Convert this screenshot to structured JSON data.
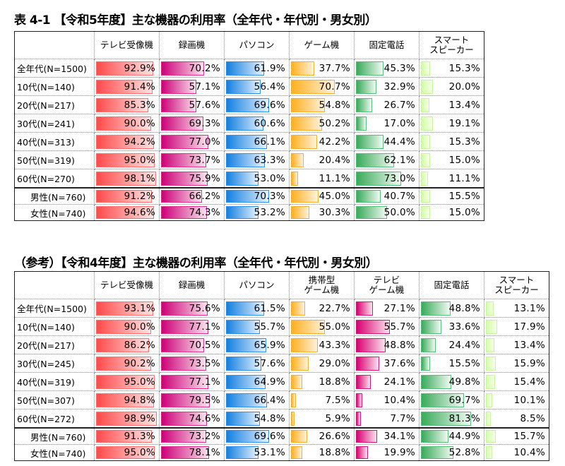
{
  "table1": {
    "title": "表 4-1 【令和5年度】主な機器の利用率（全年代・年代別・男女別）",
    "columns": [
      {
        "key": "tv",
        "label": "テレビ受像機",
        "color": "#ff4a4a"
      },
      {
        "key": "rec",
        "label": "録画機",
        "color": "#cc0077"
      },
      {
        "key": "pc",
        "label": "パソコン",
        "color": "#1480e0"
      },
      {
        "key": "game",
        "label": "ゲーム機",
        "color": "#ffb020"
      },
      {
        "key": "fix",
        "label": "固定電話",
        "color": "#3aaa5a"
      },
      {
        "key": "sp",
        "label": "スマート\nスピーカー",
        "color": "#d4ffa8"
      }
    ],
    "rows": [
      {
        "label": "全年代(N=1500)",
        "values": [
          "92.9%",
          "70.2%",
          "61.9%",
          "37.7%",
          "45.3%",
          "15.3%"
        ]
      },
      {
        "label": "10代(N=140)",
        "values": [
          "91.4%",
          "57.1%",
          "56.4%",
          "70.7%",
          "32.9%",
          "20.0%"
        ]
      },
      {
        "label": "20代(N=217)",
        "values": [
          "85.3%",
          "57.6%",
          "69.6%",
          "54.8%",
          "26.7%",
          "13.4%"
        ]
      },
      {
        "label": "30代(N=241)",
        "values": [
          "90.0%",
          "69.3%",
          "60.6%",
          "50.2%",
          "17.0%",
          "19.1%"
        ]
      },
      {
        "label": "40代(N=313)",
        "values": [
          "94.2%",
          "77.0%",
          "66.1%",
          "42.2%",
          "44.4%",
          "15.3%"
        ]
      },
      {
        "label": "50代(N=319)",
        "values": [
          "95.0%",
          "73.7%",
          "63.3%",
          "20.4%",
          "62.1%",
          "15.0%"
        ]
      },
      {
        "label": "60代(N=270)",
        "values": [
          "98.1%",
          "75.9%",
          "53.0%",
          "11.1%",
          "73.0%",
          "11.1%"
        ]
      },
      {
        "label": "男性(N=760)",
        "values": [
          "91.2%",
          "66.2%",
          "70.3%",
          "45.0%",
          "40.7%",
          "15.5%"
        ]
      },
      {
        "label": "女性(N=740)",
        "values": [
          "94.6%",
          "74.3%",
          "53.2%",
          "30.3%",
          "50.0%",
          "15.0%"
        ]
      }
    ]
  },
  "table2": {
    "title": "（参考）【令和4年度】主な機器の利用率（全年代・年代別・男女別）",
    "columns": [
      {
        "key": "tv",
        "label": "テレビ受像機",
        "color": "#ff4a4a"
      },
      {
        "key": "rec",
        "label": "録画機",
        "color": "#cc0077"
      },
      {
        "key": "pc",
        "label": "パソコン",
        "color": "#1480e0"
      },
      {
        "key": "pgame",
        "label": "携帯型\nゲーム機",
        "color": "#ffb020"
      },
      {
        "key": "tvgame",
        "label": "テレビ\nゲーム機",
        "color": "#d80070"
      },
      {
        "key": "fix",
        "label": "固定電話",
        "color": "#3aaa5a"
      },
      {
        "key": "sp",
        "label": "スマート\nスピーカー",
        "color": "#d4ffa8"
      }
    ],
    "rows": [
      {
        "label": "全年代(N=1500)",
        "values": [
          "93.1%",
          "75.6%",
          "61.5%",
          "22.7%",
          "27.1%",
          "48.8%",
          "13.1%"
        ]
      },
      {
        "label": "10代(N=140)",
        "values": [
          "90.0%",
          "77.1%",
          "55.7%",
          "55.0%",
          "55.7%",
          "33.6%",
          "17.9%"
        ]
      },
      {
        "label": "20代(N=217)",
        "values": [
          "86.2%",
          "70.5%",
          "65.9%",
          "43.3%",
          "48.8%",
          "24.4%",
          "13.4%"
        ]
      },
      {
        "label": "30代(N=245)",
        "values": [
          "90.2%",
          "73.5%",
          "57.6%",
          "29.0%",
          "37.6%",
          "15.5%",
          "15.9%"
        ]
      },
      {
        "label": "40代(N=319)",
        "values": [
          "95.0%",
          "77.1%",
          "64.9%",
          "18.8%",
          "24.1%",
          "49.8%",
          "15.4%"
        ]
      },
      {
        "label": "50代(N=307)",
        "values": [
          "94.8%",
          "79.5%",
          "66.4%",
          "7.5%",
          "10.4%",
          "69.7%",
          "10.1%"
        ]
      },
      {
        "label": "60代(N=272)",
        "values": [
          "98.9%",
          "74.6%",
          "54.8%",
          "5.9%",
          "7.7%",
          "81.3%",
          "8.5%"
        ]
      },
      {
        "label": "男性(N=760)",
        "values": [
          "91.3%",
          "73.2%",
          "69.6%",
          "26.6%",
          "34.1%",
          "44.9%",
          "15.7%"
        ]
      },
      {
        "label": "女性(N=740)",
        "values": [
          "95.0%",
          "78.1%",
          "53.1%",
          "18.8%",
          "19.9%",
          "52.8%",
          "10.4%"
        ]
      }
    ]
  },
  "chart_data": [
    {
      "type": "table",
      "title": "表 4-1 【令和5年度】主な機器の利用率（全年代・年代別・男女別）",
      "categories": [
        "全年代(N=1500)",
        "10代(N=140)",
        "20代(N=217)",
        "30代(N=241)",
        "40代(N=313)",
        "50代(N=319)",
        "60代(N=270)",
        "男性(N=760)",
        "女性(N=740)"
      ],
      "series": [
        {
          "name": "テレビ受像機",
          "values": [
            92.9,
            91.4,
            85.3,
            90.0,
            94.2,
            95.0,
            98.1,
            91.2,
            94.6
          ]
        },
        {
          "name": "録画機",
          "values": [
            70.2,
            57.1,
            57.6,
            69.3,
            77.0,
            73.7,
            75.9,
            66.2,
            74.3
          ]
        },
        {
          "name": "パソコン",
          "values": [
            61.9,
            56.4,
            69.6,
            60.6,
            66.1,
            63.3,
            53.0,
            70.3,
            53.2
          ]
        },
        {
          "name": "ゲーム機",
          "values": [
            37.7,
            70.7,
            54.8,
            50.2,
            42.2,
            20.4,
            11.1,
            45.0,
            30.3
          ]
        },
        {
          "name": "固定電話",
          "values": [
            45.3,
            32.9,
            26.7,
            17.0,
            44.4,
            62.1,
            73.0,
            40.7,
            50.0
          ]
        },
        {
          "name": "スマートスピーカー",
          "values": [
            15.3,
            20.0,
            13.4,
            19.1,
            15.3,
            15.0,
            11.1,
            15.5,
            15.0
          ]
        }
      ],
      "unit": "%",
      "ylim": [
        0,
        100
      ]
    },
    {
      "type": "table",
      "title": "（参考）【令和4年度】主な機器の利用率（全年代・年代別・男女別）",
      "categories": [
        "全年代(N=1500)",
        "10代(N=140)",
        "20代(N=217)",
        "30代(N=245)",
        "40代(N=319)",
        "50代(N=307)",
        "60代(N=272)",
        "男性(N=760)",
        "女性(N=740)"
      ],
      "series": [
        {
          "name": "テレビ受像機",
          "values": [
            93.1,
            90.0,
            86.2,
            90.2,
            95.0,
            94.8,
            98.9,
            91.3,
            95.0
          ]
        },
        {
          "name": "録画機",
          "values": [
            75.6,
            77.1,
            70.5,
            73.5,
            77.1,
            79.5,
            74.6,
            73.2,
            78.1
          ]
        },
        {
          "name": "パソコン",
          "values": [
            61.5,
            55.7,
            65.9,
            57.6,
            64.9,
            66.4,
            54.8,
            69.6,
            53.1
          ]
        },
        {
          "name": "携帯型ゲーム機",
          "values": [
            22.7,
            55.0,
            43.3,
            29.0,
            18.8,
            7.5,
            5.9,
            26.6,
            18.8
          ]
        },
        {
          "name": "テレビゲーム機",
          "values": [
            27.1,
            55.7,
            48.8,
            37.6,
            24.1,
            10.4,
            7.7,
            34.1,
            19.9
          ]
        },
        {
          "name": "固定電話",
          "values": [
            48.8,
            33.6,
            24.4,
            15.5,
            49.8,
            69.7,
            81.3,
            44.9,
            52.8
          ]
        },
        {
          "name": "スマートスピーカー",
          "values": [
            13.1,
            17.9,
            13.4,
            15.9,
            15.4,
            10.1,
            8.5,
            15.7,
            10.4
          ]
        }
      ],
      "unit": "%",
      "ylim": [
        0,
        100
      ]
    }
  ]
}
